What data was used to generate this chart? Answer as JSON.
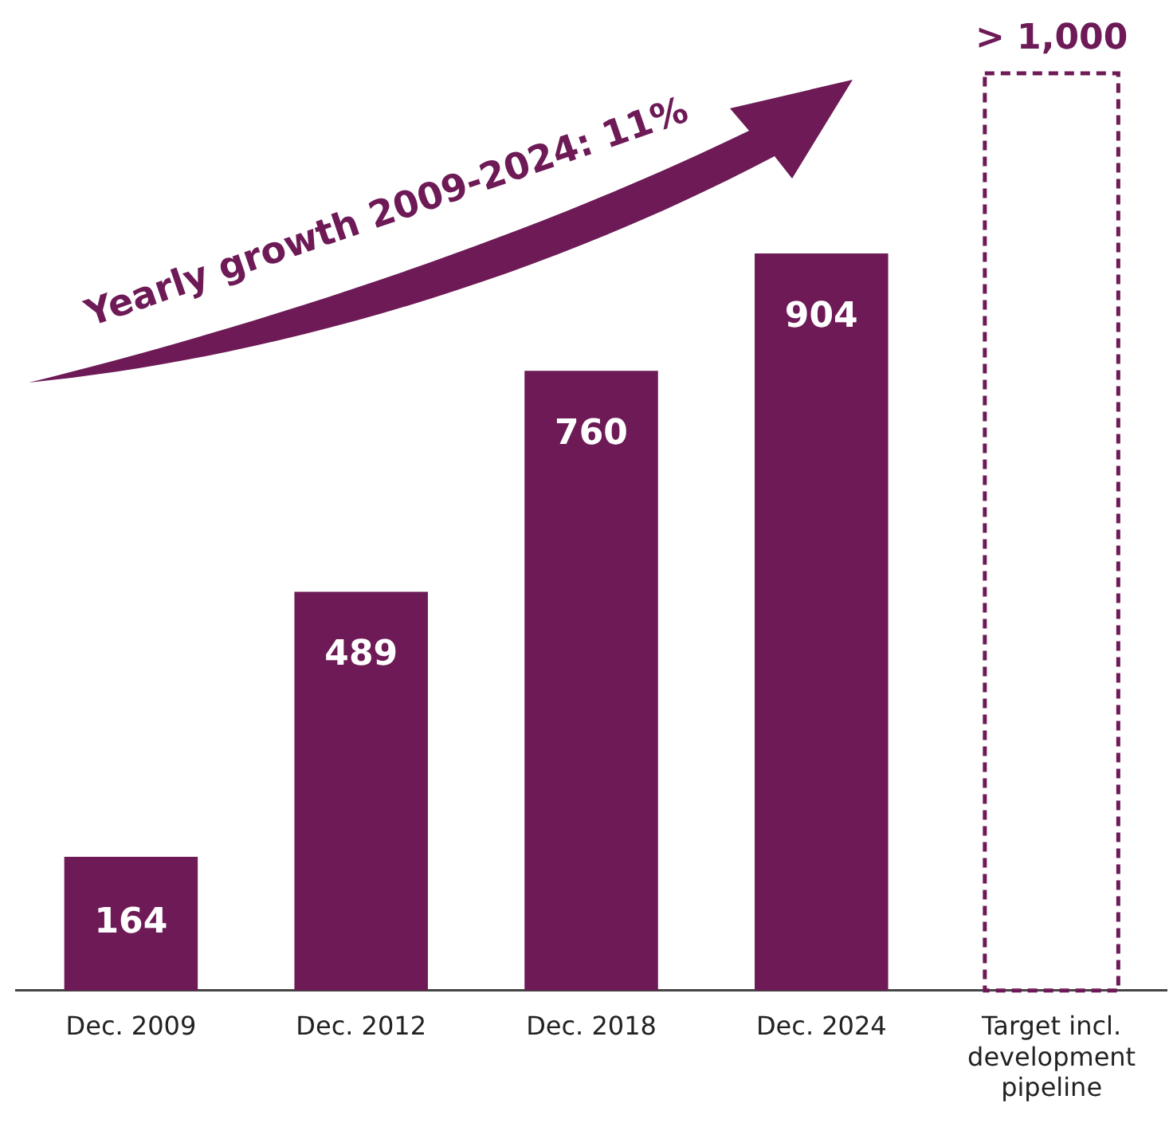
{
  "chart_data": {
    "type": "bar",
    "categories": [
      "Dec. 2009",
      "Dec. 2012",
      "Dec. 2018",
      "Dec. 2024",
      "Target incl. development pipeline"
    ],
    "series": [
      {
        "color": "#6d1a56",
        "values": [
          164,
          489,
          760,
          904,
          null
        ],
        "value_labels": [
          "164",
          "489",
          "760",
          "904",
          null
        ]
      },
      {
        "color": "#6d1a56",
        "line_style": "dashed",
        "values": [
          null,
          null,
          null,
          null,
          1125
        ],
        "value_labels": [
          null,
          null,
          null,
          null,
          "> 1,000"
        ]
      }
    ],
    "annotations": [
      "Yearly growth 2009-2024: 11%"
    ],
    "grid": false,
    "legend": false
  }
}
